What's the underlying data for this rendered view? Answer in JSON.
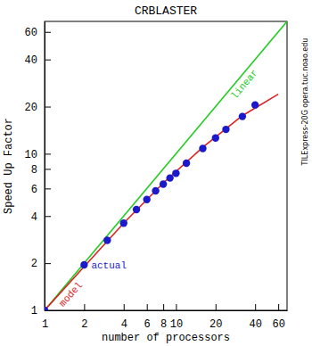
{
  "chart_data": {
    "type": "line",
    "title": "CRBLASTER",
    "x_label": "number of processors",
    "y_label": "Speed Up Factor",
    "log": true,
    "xlim": [
      1,
      70
    ],
    "ylim": [
      1,
      70
    ],
    "xticks": [
      1,
      2,
      4,
      6,
      8,
      10,
      20,
      40,
      60
    ],
    "yticks": [
      1,
      2,
      4,
      6,
      8,
      10,
      20,
      40,
      60
    ],
    "series": [
      {
        "name": "linear",
        "color": "#22cc22",
        "type": "line",
        "line_style": "solid",
        "x": [
          1,
          70
        ],
        "values": [
          1,
          70
        ]
      },
      {
        "name": "model",
        "color": "#dd2222",
        "type": "line",
        "line_style": "solid",
        "x": [
          1,
          2,
          4,
          8,
          16,
          32,
          60
        ],
        "values": [
          1,
          1.9,
          3.6,
          6.5,
          11,
          17.5,
          24
        ]
      },
      {
        "name": "actual",
        "color": "#1a1acc",
        "type": "scatter",
        "marker": "circle",
        "x": [
          1,
          2,
          3,
          4,
          5,
          6,
          7,
          8,
          9,
          10,
          12,
          16,
          20,
          24,
          32,
          40
        ],
        "values": [
          1,
          1.95,
          2.8,
          3.6,
          4.4,
          5.1,
          5.8,
          6.4,
          7.0,
          7.5,
          8.7,
          10.8,
          12.6,
          14.3,
          17.3,
          20.5
        ]
      }
    ],
    "annotations": [
      "TILExpress-20G opera.tuc.noao.edu"
    ]
  }
}
